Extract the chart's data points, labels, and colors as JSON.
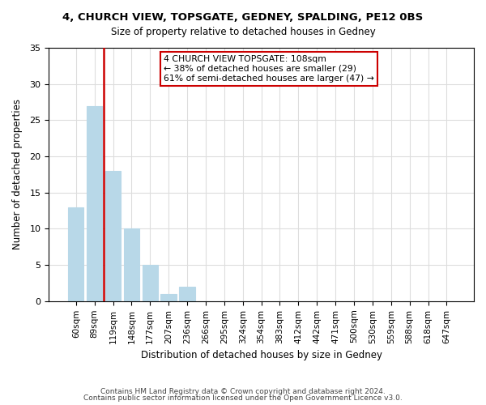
{
  "title1": "4, CHURCH VIEW, TOPSGATE, GEDNEY, SPALDING, PE12 0BS",
  "title2": "Size of property relative to detached houses in Gedney",
  "xlabel": "Distribution of detached houses by size in Gedney",
  "ylabel": "Number of detached properties",
  "bar_labels": [
    "60sqm",
    "89sqm",
    "119sqm",
    "148sqm",
    "177sqm",
    "207sqm",
    "236sqm",
    "266sqm",
    "295sqm",
    "324sqm",
    "354sqm",
    "383sqm",
    "412sqm",
    "442sqm",
    "471sqm",
    "500sqm",
    "530sqm",
    "559sqm",
    "588sqm",
    "618sqm",
    "647sqm"
  ],
  "bar_values": [
    13,
    27,
    18,
    10,
    5,
    1,
    2,
    0,
    0,
    0,
    0,
    0,
    0,
    0,
    0,
    0,
    0,
    0,
    0,
    0,
    0
  ],
  "bar_color": "#b8d8e8",
  "bar_edge_color": "#b8d8e8",
  "vline_x": 1.5,
  "vline_color": "#cc0000",
  "annotation_lines": [
    "4 CHURCH VIEW TOPSGATE: 108sqm",
    "← 38% of detached houses are smaller (29)",
    "61% of semi-detached houses are larger (47) →"
  ],
  "annotation_box_color": "#ffffff",
  "annotation_box_edge": "#cc0000",
  "ylim": [
    0,
    35
  ],
  "yticks": [
    0,
    5,
    10,
    15,
    20,
    25,
    30,
    35
  ],
  "footer1": "Contains HM Land Registry data © Crown copyright and database right 2024.",
  "footer2": "Contains public sector information licensed under the Open Government Licence v3.0.",
  "background_color": "#ffffff",
  "grid_color": "#dddddd"
}
